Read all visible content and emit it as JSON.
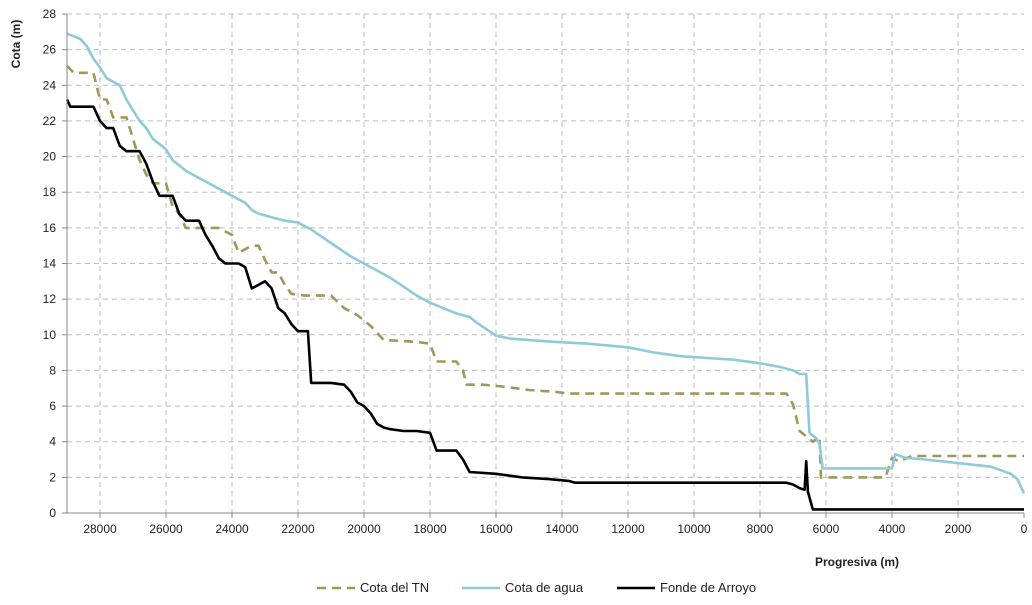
{
  "chart_data": {
    "type": "line",
    "title": "",
    "xlabel": "Progresiva (m)",
    "ylabel": "Cota (m)",
    "xlim": [
      29000,
      0
    ],
    "ylim": [
      0,
      28
    ],
    "x_reversed": true,
    "x_ticks": [
      28000,
      26000,
      24000,
      22000,
      20000,
      18000,
      16000,
      14000,
      12000,
      10000,
      8000,
      6000,
      4000,
      2000,
      0
    ],
    "y_ticks": [
      0,
      2,
      4,
      6,
      8,
      10,
      12,
      14,
      16,
      18,
      20,
      22,
      24,
      26,
      28
    ],
    "grid": "dashed",
    "legend_position": "bottom",
    "colors": {
      "tn": "#a39659",
      "agua": "#8fcada",
      "fondo": "#000000",
      "grid": "#bdbdbd",
      "axis": "#8a8a8a"
    },
    "series": [
      {
        "name": "Cota del TN",
        "style": "dashed",
        "points": [
          [
            29000,
            25.1
          ],
          [
            28800,
            24.7
          ],
          [
            28400,
            24.7
          ],
          [
            28200,
            24.7
          ],
          [
            28000,
            23.2
          ],
          [
            27800,
            23.2
          ],
          [
            27600,
            22.2
          ],
          [
            27200,
            22.2
          ],
          [
            27000,
            21.0
          ],
          [
            26800,
            19.8
          ],
          [
            26600,
            19.0
          ],
          [
            26400,
            18.5
          ],
          [
            26000,
            18.5
          ],
          [
            25800,
            17.2
          ],
          [
            25600,
            16.8
          ],
          [
            25400,
            16.0
          ],
          [
            24800,
            16.0
          ],
          [
            24600,
            16.0
          ],
          [
            24400,
            16.0
          ],
          [
            24000,
            15.6
          ],
          [
            23800,
            14.6
          ],
          [
            23600,
            14.8
          ],
          [
            23400,
            15.0
          ],
          [
            23200,
            15.0
          ],
          [
            23000,
            14.2
          ],
          [
            22800,
            13.5
          ],
          [
            22600,
            13.5
          ],
          [
            22400,
            12.8
          ],
          [
            22200,
            12.3
          ],
          [
            21800,
            12.2
          ],
          [
            21400,
            12.2
          ],
          [
            21000,
            12.2
          ],
          [
            20600,
            11.5
          ],
          [
            20200,
            11.1
          ],
          [
            19800,
            10.5
          ],
          [
            19400,
            9.7
          ],
          [
            18800,
            9.65
          ],
          [
            18400,
            9.6
          ],
          [
            18000,
            9.5
          ],
          [
            17800,
            8.5
          ],
          [
            17200,
            8.5
          ],
          [
            17000,
            8.0
          ],
          [
            16900,
            7.2
          ],
          [
            16400,
            7.2
          ],
          [
            15800,
            7.1
          ],
          [
            15000,
            6.9
          ],
          [
            14200,
            6.8
          ],
          [
            13800,
            6.7
          ],
          [
            12000,
            6.7
          ],
          [
            10000,
            6.7
          ],
          [
            8000,
            6.7
          ],
          [
            7200,
            6.7
          ],
          [
            7000,
            6.1
          ],
          [
            6800,
            4.6
          ],
          [
            6400,
            4.0
          ],
          [
            6200,
            4.3
          ],
          [
            6150,
            2.0
          ],
          [
            5600,
            2.0
          ],
          [
            4800,
            2.0
          ],
          [
            4200,
            2.0
          ],
          [
            4000,
            3.1
          ],
          [
            3800,
            2.9
          ],
          [
            3400,
            3.2
          ],
          [
            2000,
            3.2
          ],
          [
            800,
            3.2
          ],
          [
            0,
            3.2
          ]
        ]
      },
      {
        "name": "Cota de agua",
        "style": "solid",
        "points": [
          [
            29000,
            26.9
          ],
          [
            28600,
            26.6
          ],
          [
            28400,
            26.2
          ],
          [
            28200,
            25.5
          ],
          [
            28000,
            25.0
          ],
          [
            27800,
            24.4
          ],
          [
            27400,
            24.0
          ],
          [
            27200,
            23.2
          ],
          [
            27000,
            22.6
          ],
          [
            26800,
            22.0
          ],
          [
            26600,
            21.6
          ],
          [
            26400,
            21.0
          ],
          [
            26000,
            20.4
          ],
          [
            25800,
            19.8
          ],
          [
            25400,
            19.2
          ],
          [
            25000,
            18.8
          ],
          [
            24600,
            18.4
          ],
          [
            24200,
            18.0
          ],
          [
            24000,
            17.8
          ],
          [
            23600,
            17.4
          ],
          [
            23400,
            17.0
          ],
          [
            23200,
            16.8
          ],
          [
            22800,
            16.6
          ],
          [
            22400,
            16.4
          ],
          [
            22000,
            16.3
          ],
          [
            21600,
            15.9
          ],
          [
            21200,
            15.4
          ],
          [
            20800,
            14.9
          ],
          [
            20400,
            14.4
          ],
          [
            20000,
            14.0
          ],
          [
            19600,
            13.6
          ],
          [
            19200,
            13.2
          ],
          [
            18800,
            12.7
          ],
          [
            18400,
            12.2
          ],
          [
            18000,
            11.8
          ],
          [
            17600,
            11.5
          ],
          [
            17200,
            11.2
          ],
          [
            16800,
            11.0
          ],
          [
            16600,
            10.7
          ],
          [
            16200,
            10.2
          ],
          [
            16000,
            9.95
          ],
          [
            15600,
            9.8
          ],
          [
            15000,
            9.7
          ],
          [
            14200,
            9.6
          ],
          [
            13200,
            9.5
          ],
          [
            12000,
            9.3
          ],
          [
            11200,
            9.0
          ],
          [
            10400,
            8.8
          ],
          [
            9600,
            8.7
          ],
          [
            8800,
            8.6
          ],
          [
            8000,
            8.4
          ],
          [
            7400,
            8.2
          ],
          [
            7000,
            8.0
          ],
          [
            6800,
            7.8
          ],
          [
            6600,
            7.8
          ],
          [
            6500,
            4.5
          ],
          [
            6300,
            4.2
          ],
          [
            6200,
            3.9
          ],
          [
            6100,
            2.5
          ],
          [
            5600,
            2.5
          ],
          [
            4800,
            2.5
          ],
          [
            4200,
            2.5
          ],
          [
            4000,
            2.5
          ],
          [
            3900,
            3.3
          ],
          [
            3600,
            3.1
          ],
          [
            3000,
            3.0
          ],
          [
            2000,
            2.8
          ],
          [
            1000,
            2.6
          ],
          [
            400,
            2.2
          ],
          [
            200,
            1.9
          ],
          [
            0,
            1.1
          ]
        ]
      },
      {
        "name": "Fonde de Arroyo",
        "style": "solid",
        "points": [
          [
            29000,
            23.2
          ],
          [
            28900,
            22.8
          ],
          [
            28700,
            22.8
          ],
          [
            28400,
            22.8
          ],
          [
            28200,
            22.8
          ],
          [
            28000,
            22.0
          ],
          [
            27800,
            21.6
          ],
          [
            27600,
            21.6
          ],
          [
            27400,
            20.6
          ],
          [
            27200,
            20.3
          ],
          [
            26800,
            20.3
          ],
          [
            26600,
            19.6
          ],
          [
            26400,
            18.6
          ],
          [
            26200,
            17.8
          ],
          [
            25800,
            17.8
          ],
          [
            25600,
            16.8
          ],
          [
            25400,
            16.4
          ],
          [
            25000,
            16.4
          ],
          [
            24800,
            15.6
          ],
          [
            24600,
            15.0
          ],
          [
            24400,
            14.3
          ],
          [
            24200,
            14.0
          ],
          [
            23800,
            14.0
          ],
          [
            23600,
            13.8
          ],
          [
            23400,
            12.6
          ],
          [
            23200,
            12.8
          ],
          [
            23000,
            13.0
          ],
          [
            22800,
            12.6
          ],
          [
            22600,
            11.5
          ],
          [
            22400,
            11.2
          ],
          [
            22200,
            10.6
          ],
          [
            22000,
            10.2
          ],
          [
            21700,
            10.2
          ],
          [
            21600,
            7.3
          ],
          [
            21200,
            7.3
          ],
          [
            21000,
            7.3
          ],
          [
            20600,
            7.2
          ],
          [
            20400,
            6.8
          ],
          [
            20200,
            6.2
          ],
          [
            20000,
            6.0
          ],
          [
            19800,
            5.6
          ],
          [
            19600,
            5.0
          ],
          [
            19400,
            4.8
          ],
          [
            19200,
            4.7
          ],
          [
            18800,
            4.6
          ],
          [
            18400,
            4.6
          ],
          [
            18000,
            4.5
          ],
          [
            17800,
            3.5
          ],
          [
            17200,
            3.5
          ],
          [
            17000,
            3.0
          ],
          [
            16800,
            2.3
          ],
          [
            16000,
            2.2
          ],
          [
            15200,
            2.0
          ],
          [
            14400,
            1.9
          ],
          [
            13800,
            1.8
          ],
          [
            13600,
            1.7
          ],
          [
            12000,
            1.7
          ],
          [
            10000,
            1.7
          ],
          [
            8000,
            1.7
          ],
          [
            7200,
            1.7
          ],
          [
            7000,
            1.6
          ],
          [
            6800,
            1.4
          ],
          [
            6650,
            1.3
          ],
          [
            6600,
            2.9
          ],
          [
            6550,
            1.2
          ],
          [
            6400,
            0.2
          ],
          [
            6000,
            0.2
          ],
          [
            4000,
            0.2
          ],
          [
            2000,
            0.2
          ],
          [
            0,
            0.2
          ]
        ]
      }
    ]
  }
}
